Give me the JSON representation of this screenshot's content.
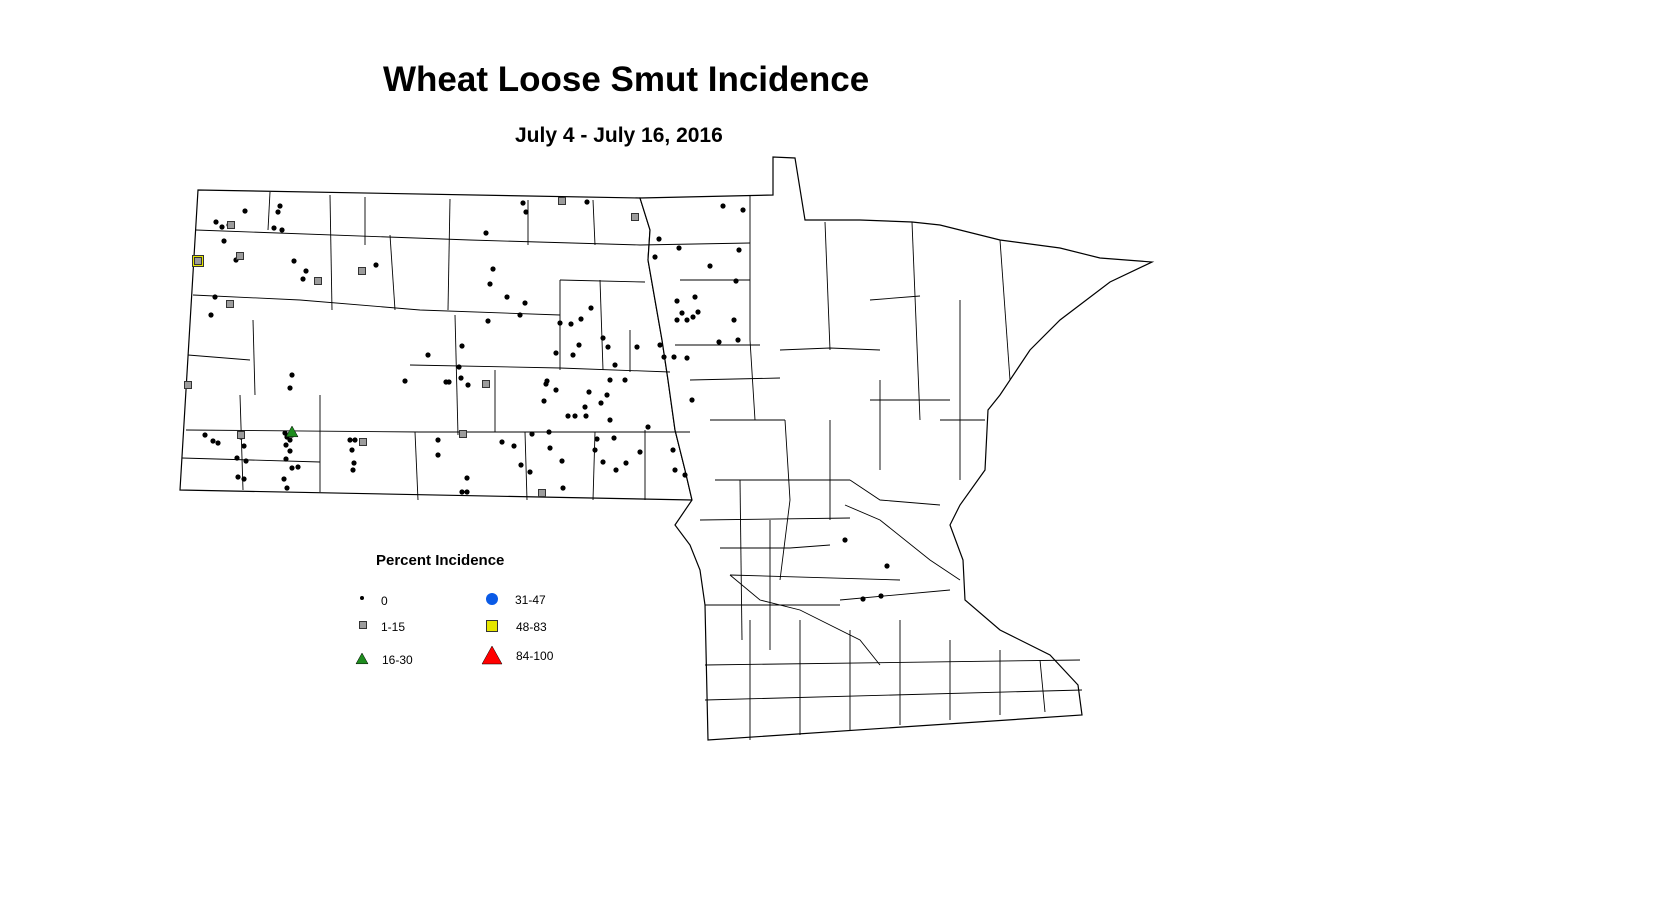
{
  "title": "Wheat Loose Smut Incidence",
  "subtitle": "July 4 - July 16, 2016",
  "legend": {
    "title": "Percent Incidence",
    "categories": [
      {
        "key": "c0",
        "label": "0",
        "symbol": "small-dot",
        "color": "#000000"
      },
      {
        "key": "c1",
        "label": "1-15",
        "symbol": "square",
        "color": "#9c9c9c"
      },
      {
        "key": "c2",
        "label": "16-30",
        "symbol": "triangle",
        "color": "#1e8c1e"
      },
      {
        "key": "c3",
        "label": "31-47",
        "symbol": "circle",
        "color": "#0a5ae6"
      },
      {
        "key": "c4",
        "label": "48-83",
        "symbol": "square",
        "color": "#e6e600"
      },
      {
        "key": "c5",
        "label": "84-100",
        "symbol": "triangle",
        "color": "#ff0000"
      }
    ]
  }
}
